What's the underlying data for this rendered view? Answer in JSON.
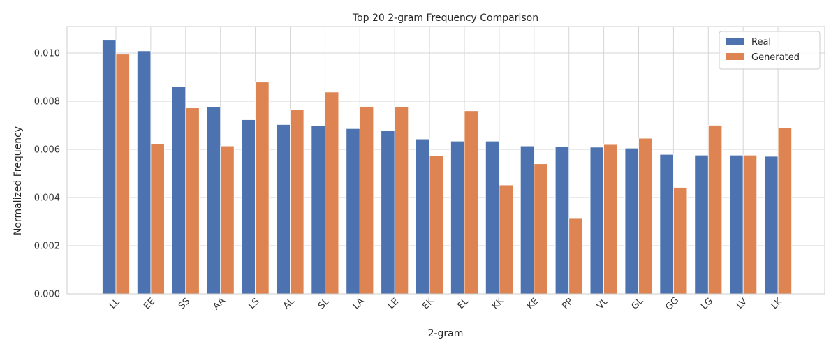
{
  "chart_data": {
    "type": "bar",
    "title": "Top 20 2-gram Frequency Comparison",
    "xlabel": "2-gram",
    "ylabel": "Normalized Frequency",
    "categories": [
      "LL",
      "EE",
      "SS",
      "AA",
      "LS",
      "AL",
      "SL",
      "LA",
      "LE",
      "EK",
      "EL",
      "KK",
      "KE",
      "PP",
      "VL",
      "GL",
      "GG",
      "LG",
      "LV",
      "LK"
    ],
    "series": [
      {
        "name": "Real",
        "color": "#4c72b0",
        "values": [
          0.01053,
          0.01009,
          0.00859,
          0.00776,
          0.00723,
          0.00703,
          0.00697,
          0.00686,
          0.00677,
          0.00643,
          0.00634,
          0.00634,
          0.00614,
          0.00611,
          0.00609,
          0.00605,
          0.00579,
          0.00576,
          0.00576,
          0.00571
        ]
      },
      {
        "name": "Generated",
        "color": "#dd8452",
        "values": [
          0.00995,
          0.00624,
          0.00772,
          0.00614,
          0.00879,
          0.00766,
          0.00838,
          0.00778,
          0.00776,
          0.00574,
          0.0076,
          0.00452,
          0.0054,
          0.00313,
          0.0062,
          0.00646,
          0.00442,
          0.007,
          0.00576,
          0.00689
        ]
      }
    ],
    "ylim": [
      0,
      0.0111
    ],
    "yticks": [
      "0.000",
      "0.002",
      "0.004",
      "0.006",
      "0.008",
      "0.010"
    ],
    "grid": true,
    "legend_position": "top-right"
  }
}
